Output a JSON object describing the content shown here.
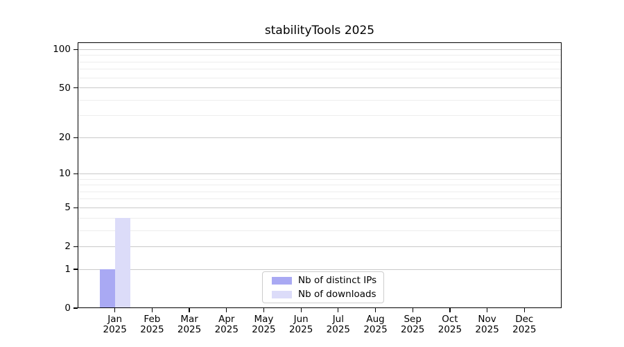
{
  "title": "stabilityTools 2025",
  "chart_data": {
    "type": "bar",
    "title": "stabilityTools 2025",
    "categories": [
      "Jan",
      "Feb",
      "Mar",
      "Apr",
      "May",
      "Jun",
      "Jul",
      "Aug",
      "Sep",
      "Oct",
      "Nov",
      "Dec"
    ],
    "year": "2025",
    "series": [
      {
        "name": "Nb of distinct IPs",
        "color": "#a9a9f3",
        "values": [
          1,
          0,
          0,
          0,
          0,
          0,
          0,
          0,
          0,
          0,
          0,
          0
        ]
      },
      {
        "name": "Nb of downloads",
        "color": "#dcdcf9",
        "values": [
          4,
          0,
          0,
          0,
          0,
          0,
          0,
          0,
          0,
          0,
          0,
          0
        ]
      }
    ],
    "y_scale": "log1p",
    "y_major_ticks": [
      0,
      1,
      2,
      5,
      10,
      20,
      50,
      100
    ],
    "y_minor_ticks": [
      3,
      4,
      6,
      7,
      8,
      9,
      30,
      40,
      60,
      70,
      80,
      90
    ],
    "ylim": [
      0,
      114
    ],
    "xlabel": "",
    "ylabel": "",
    "grid": true,
    "legend_position": "lower center"
  }
}
